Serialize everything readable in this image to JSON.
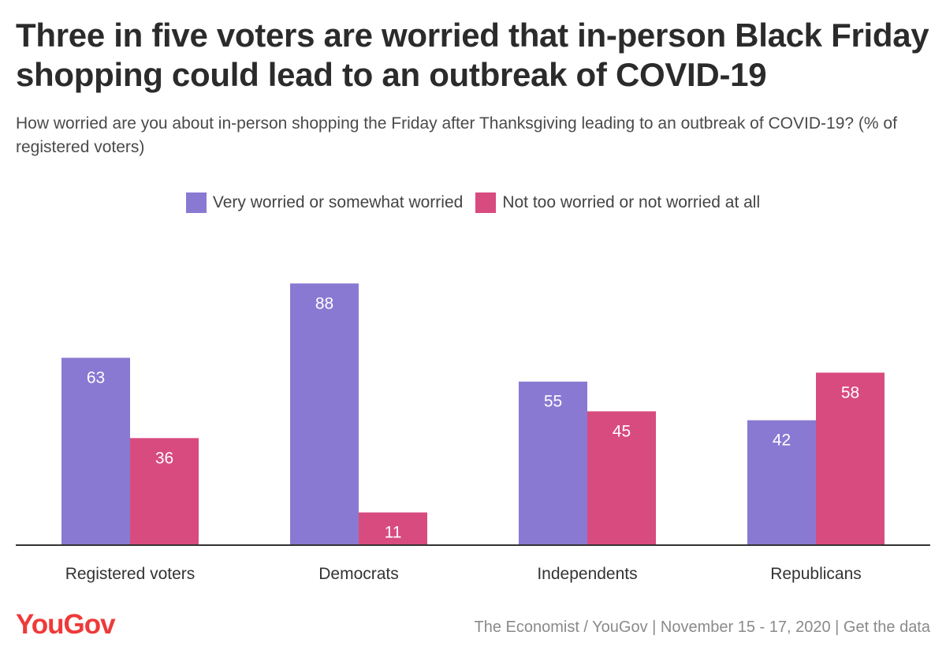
{
  "title": "Three in five voters are worried that in-person Black Friday shopping could lead to an outbreak of COVID-19",
  "subtitle": "How worried are you about in-person shopping the Friday after Thanksgiving leading to an outbreak of COVID-19? (% of registered voters)",
  "footer": {
    "logo": "YouGov",
    "source": "The Economist / YouGov | November 15 - 17, 2020 | Get the data"
  },
  "colors": {
    "worried": "#8a79d2",
    "not_worried": "#d84b7f",
    "axis": "#333333",
    "logo": "#ee3a3a"
  },
  "chart_data": {
    "type": "bar",
    "title": "Three in five voters are worried that in-person Black Friday shopping could lead to an outbreak of COVID-19",
    "xlabel": "",
    "ylabel": "",
    "ylim": [
      0,
      100
    ],
    "grid": false,
    "legend_position": "top-center",
    "categories": [
      "Registered voters",
      "Democrats",
      "Independents",
      "Republicans"
    ],
    "series": [
      {
        "name": "Very worried or somewhat worried",
        "values": [
          63,
          88,
          55,
          42
        ]
      },
      {
        "name": "Not too worried or not worried at all",
        "values": [
          36,
          11,
          45,
          58
        ]
      }
    ]
  }
}
